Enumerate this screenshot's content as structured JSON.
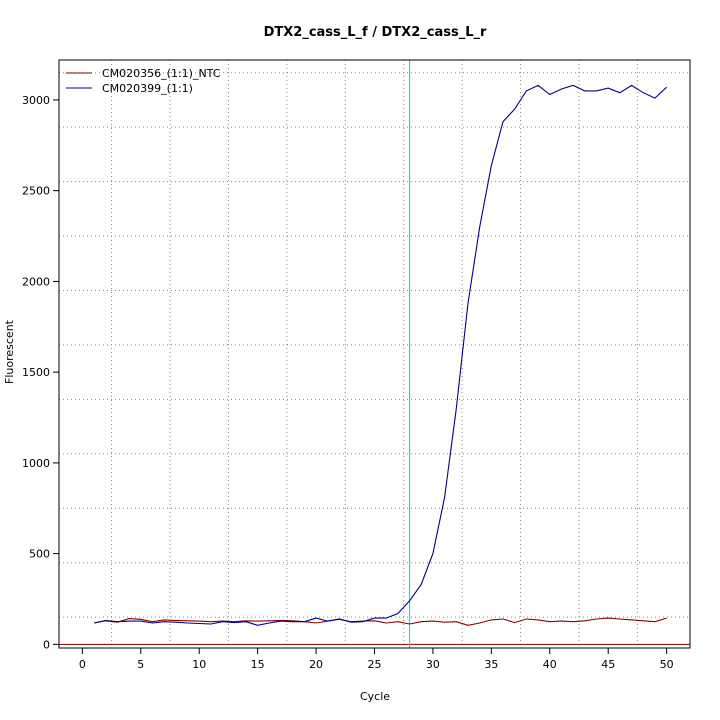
{
  "chart_data": {
    "type": "line",
    "title": "DTX2_cass_L_f / DTX2_cass_L_r",
    "xlabel": "Cycle",
    "ylabel": "Fluorescent",
    "xlim": [
      -2,
      52
    ],
    "ylim": [
      -20,
      3220
    ],
    "xticks": [
      0,
      5,
      10,
      15,
      20,
      25,
      30,
      35,
      40,
      45,
      50
    ],
    "yticks": [
      0,
      500,
      1000,
      1500,
      2000,
      2500,
      3000
    ],
    "x_grid": [
      2.5,
      7.5,
      12.5,
      17.5,
      22.5,
      27.5,
      32.5,
      37.5,
      42.5,
      47.5
    ],
    "y_grid": [
      150,
      450,
      750,
      1050,
      1350,
      1650,
      1950,
      2250,
      2550,
      2850,
      3150
    ],
    "grid": true,
    "legend_position": "top-left",
    "threshold_line": {
      "x": 28,
      "color": "#00e5ee"
    },
    "baseline": {
      "y": 0,
      "color": "#8b0000"
    },
    "series": [
      {
        "name": "CM020356_(1:1)_NTC",
        "color": "#8b0000",
        "x": [
          1,
          2,
          3,
          4,
          5,
          6,
          7,
          8,
          9,
          10,
          11,
          12,
          13,
          14,
          15,
          16,
          17,
          18,
          19,
          20,
          21,
          22,
          23,
          24,
          25,
          26,
          27,
          28,
          29,
          30,
          31,
          32,
          33,
          34,
          35,
          36,
          37,
          38,
          39,
          40,
          41,
          42,
          43,
          44,
          45,
          46,
          47,
          48,
          49,
          50
        ],
        "values": [
          118,
          130,
          122,
          142,
          138,
          125,
          135,
          132,
          130,
          128,
          125,
          128,
          125,
          130,
          128,
          130,
          132,
          130,
          125,
          118,
          128,
          138,
          125,
          128,
          130,
          118,
          125,
          112,
          125,
          128,
          122,
          125,
          105,
          118,
          135,
          140,
          120,
          140,
          135,
          125,
          128,
          125,
          130,
          140,
          145,
          140,
          135,
          130,
          125,
          145
        ]
      },
      {
        "name": "CM020399_(1:1)",
        "color": "#00008b",
        "x": [
          1,
          2,
          3,
          4,
          5,
          6,
          7,
          8,
          9,
          10,
          11,
          12,
          13,
          14,
          15,
          16,
          17,
          18,
          19,
          20,
          21,
          22,
          23,
          24,
          25,
          26,
          27,
          28,
          29,
          30,
          31,
          32,
          33,
          34,
          35,
          36,
          37,
          38,
          39,
          40,
          41,
          42,
          43,
          44,
          45,
          46,
          47,
          48,
          49,
          50
        ],
        "values": [
          118,
          132,
          125,
          128,
          128,
          118,
          125,
          122,
          118,
          115,
          112,
          125,
          120,
          125,
          105,
          118,
          128,
          125,
          125,
          145,
          128,
          140,
          122,
          125,
          145,
          145,
          170,
          240,
          330,
          500,
          810,
          1300,
          1880,
          2300,
          2640,
          2880,
          2950,
          3050,
          3080,
          3030,
          3060,
          3080,
          3050,
          3050,
          3065,
          3040,
          3080,
          3040,
          3010,
          3070
        ]
      }
    ]
  }
}
